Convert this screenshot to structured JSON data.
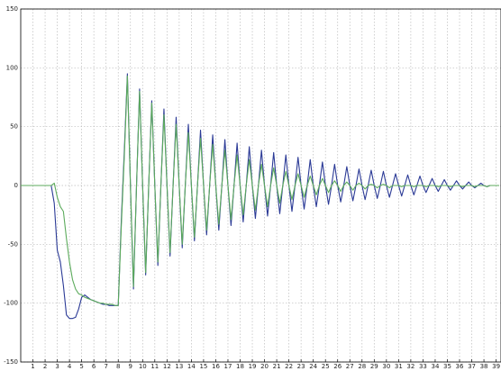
{
  "chart_data": {
    "type": "line",
    "x": [
      0,
      2.5,
      2.75,
      3,
      3.25,
      3.5,
      3.75,
      4,
      4.25,
      4.5,
      4.75,
      5,
      5.25,
      5.5,
      5.75,
      6,
      6.25,
      6.5,
      6.75,
      7,
      7.25,
      7.5,
      7.75,
      8,
      8.25,
      8.5,
      8.75,
      9,
      9.25,
      9.5,
      9.75,
      10,
      10.25,
      10.5,
      10.75,
      11,
      11.25,
      11.5,
      11.75,
      12,
      12.25,
      12.5,
      12.75,
      13,
      13.25,
      13.5,
      13.75,
      14,
      14.25,
      14.5,
      14.75,
      15,
      15.25,
      15.5,
      15.75,
      16,
      16.25,
      16.5,
      16.75,
      17,
      17.25,
      17.5,
      17.75,
      18,
      18.25,
      18.5,
      18.75,
      19,
      19.25,
      19.5,
      19.75,
      20,
      20.25,
      20.5,
      20.75,
      21,
      21.25,
      21.5,
      21.75,
      22,
      22.25,
      22.5,
      22.75,
      23,
      23.25,
      23.5,
      23.75,
      24,
      24.25,
      24.5,
      24.75,
      25,
      25.25,
      25.5,
      25.75,
      26,
      26.25,
      26.5,
      26.75,
      27,
      27.25,
      27.5,
      27.75,
      28,
      28.25,
      28.5,
      28.75,
      29,
      29.25,
      29.5,
      29.75,
      30,
      30.25,
      30.5,
      30.75,
      31,
      31.25,
      31.5,
      31.75,
      32,
      32.25,
      32.5,
      32.75,
      33,
      33.25,
      33.5,
      33.75,
      34,
      34.25,
      34.5,
      34.75,
      35,
      35.25,
      35.5,
      35.75,
      36,
      36.25,
      36.5,
      36.75,
      37,
      37.25,
      37.5,
      37.75,
      38,
      38.25,
      38.5,
      39.25
    ],
    "series": [
      {
        "color": "#2b3a96",
        "values": [
          0,
          0,
          -15,
          -55,
          -65,
          -85,
          -110,
          -113,
          -113,
          -112,
          -105,
          -95,
          -93,
          -95,
          -97,
          -98,
          -99,
          -100,
          -101,
          -101,
          -102,
          -102,
          -102,
          -102,
          -30,
          30,
          95,
          0,
          -88,
          0,
          82,
          0,
          -76,
          0,
          72,
          0,
          -68,
          0,
          65,
          0,
          -60,
          0,
          58,
          0,
          -53,
          0,
          52,
          0,
          -47,
          0,
          47,
          0,
          -42,
          0,
          43,
          0,
          -38,
          0,
          39,
          0,
          -34,
          0,
          36,
          0,
          -31,
          0,
          33,
          0,
          -28,
          0,
          30,
          0,
          -26,
          0,
          28,
          0,
          -24,
          0,
          26,
          0,
          -22,
          0,
          24,
          0,
          -20,
          0,
          22,
          0,
          -18,
          0,
          20,
          0,
          -16,
          0,
          18,
          0,
          -14,
          0,
          16,
          0,
          -13,
          0,
          14,
          0,
          -12,
          0,
          13,
          0,
          -11,
          0,
          12,
          0,
          -10,
          0,
          10,
          0,
          -9,
          0,
          9,
          0,
          -8,
          0,
          8,
          0,
          -6,
          0,
          6,
          0,
          -5,
          0,
          5,
          0,
          -4,
          0,
          4,
          0,
          -3,
          0,
          3,
          0,
          -2,
          0,
          2,
          0,
          -1,
          0,
          0
        ]
      },
      {
        "color": "#5cab5c",
        "values": [
          0,
          0,
          2,
          -10,
          -18,
          -22,
          -45,
          -65,
          -80,
          -88,
          -92,
          -93,
          -95,
          -96,
          -97,
          -98,
          -99,
          -100,
          -100,
          -101,
          -101,
          -101,
          -102,
          -102,
          -35,
          25,
          93,
          0,
          -86,
          0,
          80,
          0,
          -74,
          0,
          70,
          0,
          -65,
          0,
          60,
          0,
          -57,
          0,
          52,
          0,
          -50,
          0,
          45,
          0,
          -44,
          0,
          40,
          0,
          -38,
          0,
          35,
          0,
          -33,
          0,
          30,
          0,
          -29,
          0,
          26,
          0,
          -25,
          0,
          22,
          0,
          -21,
          0,
          18,
          0,
          -18,
          0,
          15,
          0,
          -15,
          0,
          12,
          0,
          -12,
          0,
          10,
          0,
          -10,
          0,
          8,
          0,
          -8,
          0,
          6,
          0,
          -6,
          0,
          4,
          0,
          -5,
          0,
          3,
          0,
          -4,
          0,
          2,
          0,
          -3,
          0,
          1,
          0,
          -2,
          0,
          1,
          0,
          -2,
          0,
          0,
          0,
          -1,
          0,
          0,
          0,
          -1,
          0,
          0,
          0,
          -1,
          0,
          0,
          0,
          -1,
          0,
          0,
          0,
          -1,
          0,
          0,
          0,
          -1,
          0,
          0,
          0,
          -1,
          0,
          0,
          0,
          -1,
          0,
          0
        ]
      }
    ],
    "xlim": [
      0,
      39.4
    ],
    "ylim": [
      -150,
      150
    ],
    "xticks": [
      1,
      2,
      3,
      4,
      5,
      6,
      7,
      8,
      9,
      10,
      11,
      12,
      13,
      14,
      15,
      16,
      17,
      18,
      19,
      20,
      21,
      22,
      23,
      24,
      25,
      26,
      27,
      28,
      29,
      30,
      31,
      32,
      33,
      34,
      35,
      36,
      37,
      38,
      39
    ],
    "yticks": [
      -150,
      -100,
      -50,
      0,
      50,
      100,
      150
    ],
    "grid": true
  }
}
